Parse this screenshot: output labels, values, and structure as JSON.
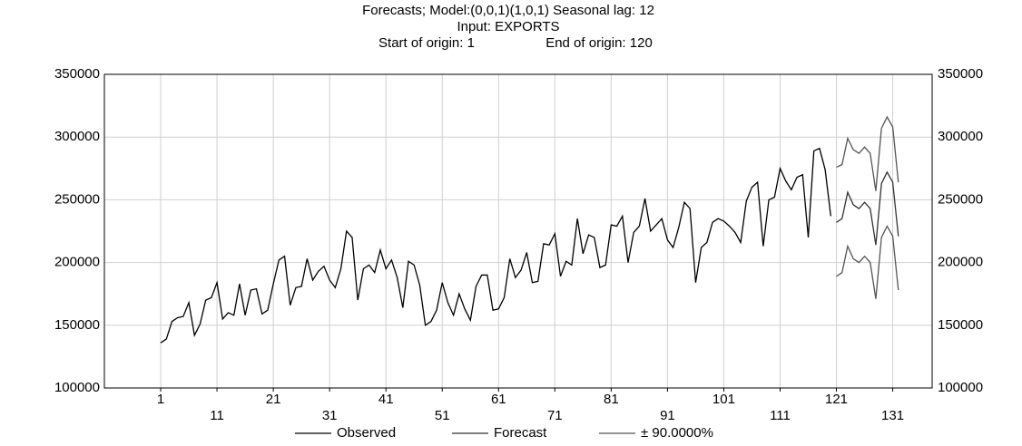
{
  "chart_data": {
    "type": "line",
    "title": "Forecasts; Model:(0,0,1)(1,0,1) Seasonal lag: 12",
    "subtitle": "Input: EXPORTS",
    "origin_labels": [
      "Start of origin: 1",
      "End of origin: 120"
    ],
    "x": [
      1,
      2,
      3,
      4,
      5,
      6,
      7,
      8,
      9,
      10,
      11,
      12,
      13,
      14,
      15,
      16,
      17,
      18,
      19,
      20,
      21,
      22,
      23,
      24,
      25,
      26,
      27,
      28,
      29,
      30,
      31,
      32,
      33,
      34,
      35,
      36,
      37,
      38,
      39,
      40,
      41,
      42,
      43,
      44,
      45,
      46,
      47,
      48,
      49,
      50,
      51,
      52,
      53,
      54,
      55,
      56,
      57,
      58,
      59,
      60,
      61,
      62,
      63,
      64,
      65,
      66,
      67,
      68,
      69,
      70,
      71,
      72,
      73,
      74,
      75,
      76,
      77,
      78,
      79,
      80,
      81,
      82,
      83,
      84,
      85,
      86,
      87,
      88,
      89,
      90,
      91,
      92,
      93,
      94,
      95,
      96,
      97,
      98,
      99,
      100,
      101,
      102,
      103,
      104,
      105,
      106,
      107,
      108,
      109,
      110,
      111,
      112,
      113,
      114,
      115,
      116,
      117,
      118,
      119,
      120,
      121,
      122,
      123,
      124,
      125,
      126,
      127,
      128,
      129,
      130,
      131,
      132
    ],
    "series": [
      {
        "name": "Observed",
        "color": "#000000",
        "values": [
          136000,
          139000,
          153000,
          156000,
          157000,
          168000,
          142000,
          151000,
          170000,
          172000,
          184000,
          155000,
          160000,
          158000,
          183000,
          158000,
          178000,
          179000,
          159000,
          162000,
          183000,
          202000,
          205000,
          166000,
          180000,
          181000,
          203000,
          186000,
          193000,
          197000,
          186000,
          180000,
          195000,
          225000,
          220000,
          170000,
          195000,
          198000,
          192000,
          210000,
          195000,
          202000,
          188000,
          164000,
          201000,
          198000,
          182000,
          150000,
          153000,
          162000,
          184000,
          168000,
          158000,
          175000,
          163000,
          154000,
          181000,
          190000,
          190000,
          162000,
          163000,
          172000,
          203000,
          188000,
          194000,
          208000,
          184000,
          185000,
          215000,
          214000,
          223000,
          189000,
          201000,
          198000,
          235000,
          207000,
          222000,
          220000,
          196000,
          198000,
          230000,
          229000,
          237000,
          200000,
          224000,
          229000,
          251000,
          225000,
          230000,
          235000,
          218000,
          212000,
          228000,
          248000,
          243000,
          184000,
          212000,
          216000,
          232000,
          235000,
          233000,
          229000,
          224000,
          216000,
          249000,
          260000,
          264000,
          213000,
          250000,
          252000,
          275000,
          265000,
          258000,
          268000,
          270000,
          220000,
          289000,
          291000,
          274000,
          237000,
          null,
          null,
          null,
          null,
          null,
          null,
          null,
          null,
          null,
          null,
          null,
          null
        ]
      },
      {
        "name": "Forecast",
        "color": "#333333",
        "values": [
          null,
          null,
          null,
          null,
          null,
          null,
          null,
          null,
          null,
          null,
          null,
          null,
          null,
          null,
          null,
          null,
          null,
          null,
          null,
          null,
          null,
          null,
          null,
          null,
          null,
          null,
          null,
          null,
          null,
          null,
          null,
          null,
          null,
          null,
          null,
          null,
          null,
          null,
          null,
          null,
          null,
          null,
          null,
          null,
          null,
          null,
          null,
          null,
          null,
          null,
          null,
          null,
          null,
          null,
          null,
          null,
          null,
          null,
          null,
          null,
          null,
          null,
          null,
          null,
          null,
          null,
          null,
          null,
          null,
          null,
          null,
          null,
          null,
          null,
          null,
          null,
          null,
          null,
          null,
          null,
          null,
          null,
          null,
          null,
          null,
          null,
          null,
          null,
          null,
          null,
          null,
          null,
          null,
          null,
          null,
          null,
          null,
          null,
          null,
          null,
          null,
          null,
          null,
          null,
          null,
          null,
          null,
          null,
          null,
          null,
          null,
          null,
          null,
          null,
          null,
          null,
          null,
          null,
          null,
          null,
          232000,
          235000,
          256000,
          246000,
          243000,
          248000,
          243000,
          214000,
          263000,
          272000,
          264000,
          221000
        ]
      }
    ],
    "band": {
      "name": "± 90.0000%",
      "color": "#555555",
      "upper": [
        276000,
        278000,
        299000,
        290000,
        287000,
        292000,
        287000,
        257000,
        307000,
        316000,
        308000,
        264000
      ],
      "lower": [
        189000,
        192000,
        213000,
        203000,
        200000,
        205000,
        200000,
        171000,
        220000,
        229000,
        221000,
        178000
      ],
      "x": [
        121,
        122,
        123,
        124,
        125,
        126,
        127,
        128,
        129,
        130,
        131,
        132
      ]
    },
    "xlim": [
      -9,
      138
    ],
    "xticks": [
      1,
      11,
      21,
      31,
      41,
      51,
      61,
      71,
      81,
      91,
      101,
      111,
      121,
      131
    ],
    "ylim": [
      100000,
      350000
    ],
    "yticks": [
      100000,
      150000,
      200000,
      250000,
      300000,
      350000
    ],
    "grid": true
  }
}
